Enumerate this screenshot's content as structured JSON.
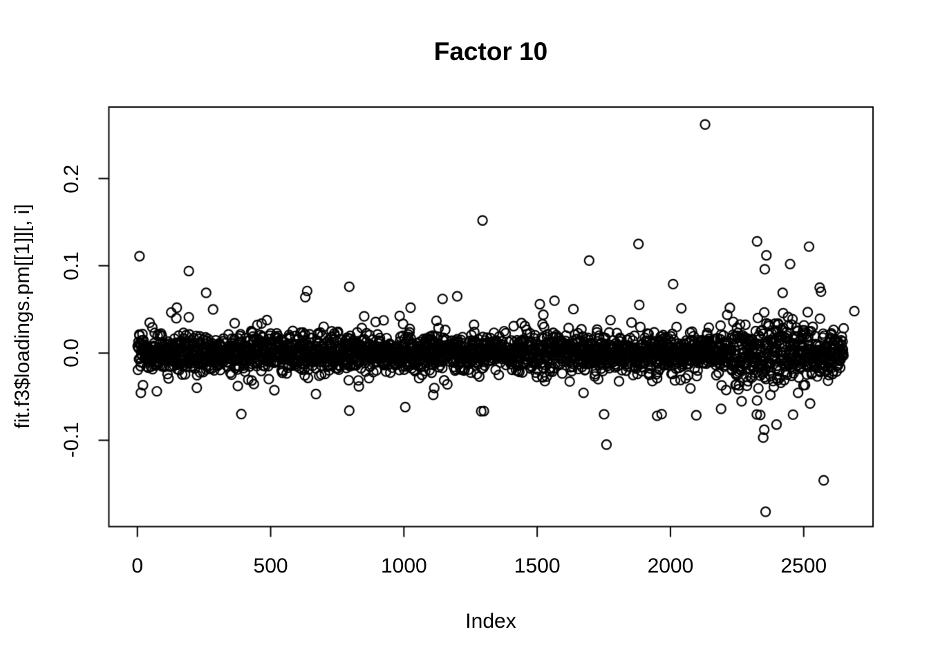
{
  "chart_data": {
    "type": "scatter",
    "title": "Factor 10",
    "xlabel": "Index",
    "ylabel": "fit.f3$loadings.pm[[1]][, i]",
    "xlim": [
      -107,
      2760
    ],
    "ylim": [
      -0.199,
      0.282
    ],
    "xticks": [
      "0",
      "500",
      "1000",
      "1500",
      "2000",
      "2500"
    ],
    "xtick_values": [
      0,
      500,
      1000,
      1500,
      2000,
      2500
    ],
    "yticks": [
      "0.2",
      "0.1",
      "0.0",
      "-0.1"
    ],
    "ytick_values": [
      0.2,
      0.1,
      0.0,
      -0.1
    ],
    "grid": false,
    "legend": null,
    "marker": {
      "shape": "open-circle",
      "color": "#000000",
      "radius_px": 6.6,
      "stroke_px": 2.2
    },
    "n_points": 2650,
    "band": {
      "description": "dense noise band of ~2650 open circles centered on y=0",
      "mean": 0,
      "sd_core": 0.0105,
      "sd_mid": 0.02,
      "sd_tail": 0.033,
      "p_mid": 0.13,
      "p_tail": 0.02,
      "wide_region": [
        2230,
        2530
      ],
      "wide_scale": 1.65,
      "clamp": 0.072,
      "seed": 42
    },
    "outliers": [
      [
        8,
        0.111
      ],
      [
        148,
        0.052
      ],
      [
        193,
        0.094
      ],
      [
        258,
        0.069
      ],
      [
        284,
        0.05
      ],
      [
        390,
        -0.07
      ],
      [
        630,
        0.064
      ],
      [
        670,
        -0.047
      ],
      [
        795,
        0.076
      ],
      [
        795,
        -0.066
      ],
      [
        1005,
        -0.062
      ],
      [
        1025,
        0.052
      ],
      [
        1145,
        0.062
      ],
      [
        1200,
        0.065
      ],
      [
        1295,
        0.152
      ],
      [
        1510,
        0.056
      ],
      [
        1565,
        0.06
      ],
      [
        1695,
        0.106
      ],
      [
        1760,
        -0.105
      ],
      [
        1880,
        0.125
      ],
      [
        1950,
        -0.072
      ],
      [
        2010,
        0.079
      ],
      [
        2130,
        0.262
      ],
      [
        2190,
        -0.064
      ],
      [
        2325,
        0.128
      ],
      [
        2337,
        -0.071
      ],
      [
        2348,
        -0.097
      ],
      [
        2352,
        -0.088
      ],
      [
        2354,
        0.096
      ],
      [
        2357,
        -0.182
      ],
      [
        2360,
        0.112
      ],
      [
        2398,
        -0.082
      ],
      [
        2449,
        0.102
      ],
      [
        2520,
        0.122
      ],
      [
        2560,
        0.075
      ],
      [
        2575,
        -0.146
      ],
      [
        2690,
        0.048
      ]
    ]
  }
}
